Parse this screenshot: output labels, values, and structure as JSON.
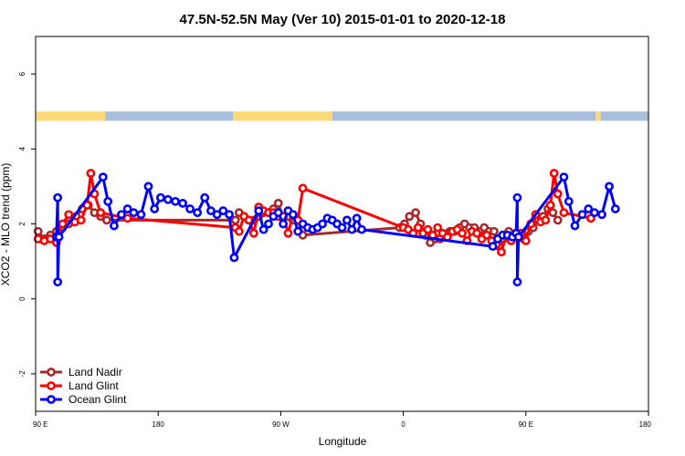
{
  "chart_data": {
    "type": "line",
    "title": "47.5N-52.5N May (Ver 10)   2015-01-01 to 2020-12-18",
    "xlabel": "Longitude",
    "ylabel": "XCO2 - MLO trend (ppm)",
    "xlim": [
      0,
      500
    ],
    "ylim": [
      -3,
      7
    ],
    "x_ticks": [
      {
        "value": 0,
        "label": "90 E"
      },
      {
        "value": 100,
        "label": "180"
      },
      {
        "value": 200,
        "label": "90 W"
      },
      {
        "value": 300,
        "label": "0"
      },
      {
        "value": 400,
        "label": "90 E"
      },
      {
        "value": 500,
        "label": "180"
      }
    ],
    "y_ticks": [
      -2,
      0,
      2,
      4,
      6
    ],
    "land_ocean_band": {
      "y_range": [
        4.75,
        5.0
      ],
      "land_color": "#fdd97c",
      "ocean_color": "#a7bedd",
      "segments": [
        {
          "type": "land",
          "from": 0,
          "to": 57
        },
        {
          "type": "ocean",
          "from": 57,
          "to": 161
        },
        {
          "type": "land",
          "from": 161,
          "to": 242
        },
        {
          "type": "ocean",
          "from": 242,
          "to": 457
        },
        {
          "type": "land",
          "from": 457,
          "to": 461
        },
        {
          "type": "ocean",
          "from": 461,
          "to": 500
        }
      ]
    },
    "legend": {
      "position": "bottom-left",
      "entries": [
        "Land Nadir",
        "Land Glint",
        "Ocean Glint"
      ]
    },
    "series": [
      {
        "name": "Land Nadir",
        "color": "#a52a2a",
        "points": [
          [
            2,
            1.8
          ],
          [
            7,
            1.6
          ],
          [
            12,
            1.7
          ],
          [
            17,
            1.8
          ],
          [
            22,
            1.9
          ],
          [
            27,
            2.0
          ],
          [
            33,
            2.2
          ],
          [
            38,
            2.4
          ],
          [
            43,
            2.5
          ],
          [
            48,
            2.3
          ],
          [
            53,
            2.2
          ],
          [
            58,
            2.1
          ],
          [
            163,
            2.1
          ],
          [
            166,
            2.3
          ],
          [
            170,
            2.2
          ],
          [
            174,
            2.1
          ],
          [
            178,
            2.1
          ],
          [
            182,
            2.2
          ],
          [
            186,
            2.3
          ],
          [
            190,
            2.3
          ],
          [
            194,
            2.4
          ],
          [
            198,
            2.55
          ],
          [
            202,
            2.15
          ],
          [
            206,
            2.2
          ],
          [
            210,
            2.1
          ],
          [
            214,
            2.1
          ],
          [
            218,
            1.7
          ],
          [
            297,
            1.9
          ],
          [
            301,
            2.0
          ],
          [
            305,
            2.2
          ],
          [
            310,
            2.3
          ],
          [
            314,
            2.0
          ],
          [
            318,
            1.7
          ],
          [
            322,
            1.5
          ],
          [
            326,
            1.6
          ],
          [
            330,
            1.6
          ],
          [
            334,
            1.7
          ],
          [
            338,
            1.8
          ],
          [
            342,
            1.8
          ],
          [
            346,
            1.9
          ],
          [
            350,
            2.0
          ],
          [
            354,
            1.9
          ],
          [
            358,
            1.9
          ],
          [
            362,
            1.8
          ],
          [
            366,
            1.9
          ],
          [
            370,
            1.8
          ],
          [
            374,
            1.8
          ],
          [
            378,
            1.4
          ],
          [
            382,
            1.6
          ],
          [
            386,
            1.8
          ],
          [
            390,
            1.7
          ],
          [
            394,
            1.7
          ],
          [
            398,
            1.6
          ],
          [
            402,
            1.8
          ],
          [
            406,
            1.9
          ],
          [
            410,
            2.1
          ],
          [
            414,
            2.2
          ],
          [
            418,
            2.4
          ],
          [
            422,
            2.3
          ],
          [
            426,
            2.1
          ]
        ]
      },
      {
        "name": "Land Glint",
        "color": "#ff0000",
        "points": [
          [
            2,
            1.6
          ],
          [
            7,
            1.55
          ],
          [
            12,
            1.6
          ],
          [
            17,
            1.5
          ],
          [
            22,
            2.0
          ],
          [
            27,
            2.25
          ],
          [
            32,
            2.05
          ],
          [
            37,
            2.1
          ],
          [
            42,
            2.5
          ],
          [
            45,
            3.35
          ],
          [
            48,
            2.8
          ],
          [
            53,
            2.3
          ],
          [
            75,
            2.15
          ],
          [
            163,
            1.9
          ],
          [
            166,
            1.8
          ],
          [
            170,
            2.2
          ],
          [
            174,
            2.1
          ],
          [
            178,
            1.75
          ],
          [
            182,
            2.45
          ],
          [
            186,
            2.35
          ],
          [
            190,
            2.3
          ],
          [
            194,
            2.3
          ],
          [
            198,
            2.2
          ],
          [
            202,
            2.2
          ],
          [
            206,
            1.75
          ],
          [
            210,
            2.25
          ],
          [
            214,
            2.1
          ],
          [
            218,
            2.95
          ],
          [
            300,
            1.9
          ],
          [
            304,
            1.85
          ],
          [
            308,
            1.75
          ],
          [
            312,
            1.9
          ],
          [
            316,
            1.75
          ],
          [
            320,
            1.85
          ],
          [
            324,
            1.7
          ],
          [
            328,
            1.9
          ],
          [
            332,
            1.75
          ],
          [
            336,
            1.65
          ],
          [
            340,
            1.8
          ],
          [
            344,
            1.85
          ],
          [
            348,
            1.75
          ],
          [
            352,
            1.55
          ],
          [
            356,
            1.8
          ],
          [
            360,
            1.75
          ],
          [
            364,
            1.6
          ],
          [
            368,
            1.7
          ],
          [
            372,
            1.55
          ],
          [
            376,
            1.45
          ],
          [
            380,
            1.25
          ],
          [
            384,
            1.7
          ],
          [
            388,
            1.55
          ],
          [
            392,
            1.65
          ],
          [
            396,
            1.75
          ],
          [
            400,
            1.55
          ],
          [
            404,
            2.0
          ],
          [
            408,
            2.25
          ],
          [
            412,
            2.05
          ],
          [
            416,
            2.1
          ],
          [
            420,
            2.5
          ],
          [
            423,
            3.35
          ],
          [
            426,
            2.8
          ],
          [
            431,
            2.3
          ],
          [
            453,
            2.15
          ]
        ]
      },
      {
        "name": "Ocean Glint",
        "color": "#0000ff",
        "points": [
          [
            17,
            1.65
          ],
          [
            18,
            2.7
          ],
          [
            18,
            0.45
          ],
          [
            19,
            1.65
          ],
          [
            55,
            3.25
          ],
          [
            59,
            2.6
          ],
          [
            64,
            1.95
          ],
          [
            70,
            2.25
          ],
          [
            75,
            2.4
          ],
          [
            80,
            2.3
          ],
          [
            86,
            2.25
          ],
          [
            92,
            3.0
          ],
          [
            97,
            2.4
          ],
          [
            102,
            2.7
          ],
          [
            108,
            2.65
          ],
          [
            114,
            2.6
          ],
          [
            120,
            2.55
          ],
          [
            126,
            2.4
          ],
          [
            132,
            2.3
          ],
          [
            138,
            2.7
          ],
          [
            143,
            2.35
          ],
          [
            148,
            2.25
          ],
          [
            153,
            2.35
          ],
          [
            158,
            2.25
          ],
          [
            162,
            1.1
          ],
          [
            182,
            2.35
          ],
          [
            186,
            1.85
          ],
          [
            190,
            2.0
          ],
          [
            194,
            2.2
          ],
          [
            198,
            2.3
          ],
          [
            202,
            2.0
          ],
          [
            206,
            2.35
          ],
          [
            210,
            2.25
          ],
          [
            214,
            1.8
          ],
          [
            218,
            2.0
          ],
          [
            222,
            1.9
          ],
          [
            226,
            1.85
          ],
          [
            230,
            1.9
          ],
          [
            234,
            2.0
          ],
          [
            238,
            2.15
          ],
          [
            242,
            2.1
          ],
          [
            246,
            2.0
          ],
          [
            250,
            1.9
          ],
          [
            254,
            2.1
          ],
          [
            258,
            1.85
          ],
          [
            262,
            2.15
          ],
          [
            266,
            1.85
          ],
          [
            373,
            1.4
          ],
          [
            377,
            1.6
          ],
          [
            381,
            1.7
          ],
          [
            385,
            1.7
          ],
          [
            389,
            1.65
          ],
          [
            392,
            1.75
          ],
          [
            393,
            2.7
          ],
          [
            393,
            0.45
          ],
          [
            394,
            1.65
          ],
          [
            431,
            3.25
          ],
          [
            435,
            2.6
          ],
          [
            440,
            1.95
          ],
          [
            446,
            2.25
          ],
          [
            451,
            2.4
          ],
          [
            456,
            2.3
          ],
          [
            462,
            2.25
          ],
          [
            468,
            3.0
          ],
          [
            473,
            2.4
          ]
        ]
      }
    ]
  }
}
